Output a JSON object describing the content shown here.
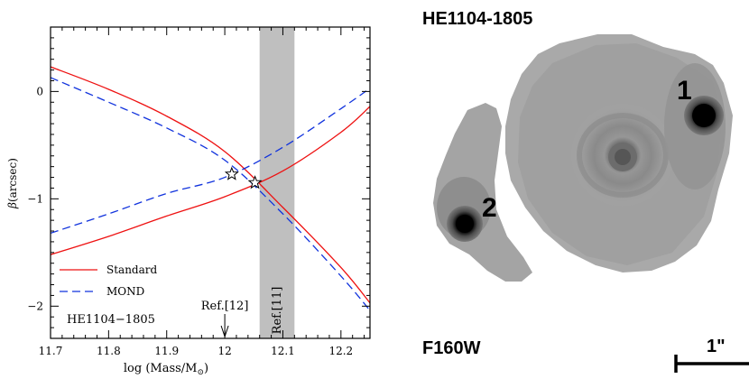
{
  "chart_data": {
    "type": "line",
    "title": "",
    "xlabel": "log (Mass/M",
    "xlabel_sub": "⊙",
    "xlabel_close": ")",
    "ylabel_greek": "β",
    "ylabel_rest": "(arcsec)",
    "xlim": [
      11.7,
      12.25
    ],
    "ylim": [
      -2.3,
      0.6
    ],
    "xticks": [
      11.7,
      11.8,
      11.9,
      12,
      12.1,
      12.2
    ],
    "xtick_labels": [
      "11.7",
      "11.8",
      "11.9",
      "12",
      "12.1",
      "12.2"
    ],
    "yticks": [
      0,
      -1,
      -2
    ],
    "ytick_labels": [
      "0",
      "−1",
      "−2"
    ],
    "grid": false,
    "legend_position": "bottom-left",
    "series": [
      {
        "name": "Standard",
        "style": "solid",
        "color": "#ee1111",
        "x": [
          11.7,
          11.8,
          11.9,
          12.0,
          12.1,
          12.2,
          12.25
        ],
        "y": [
          -1.52,
          -1.35,
          -1.16,
          -0.98,
          -0.74,
          -0.38,
          -0.14
        ]
      },
      {
        "name": "",
        "style": "solid",
        "color": "#ee1111",
        "x": [
          11.7,
          11.8,
          11.9,
          12.0,
          12.1,
          12.2,
          12.25
        ],
        "y": [
          0.23,
          0.02,
          -0.23,
          -0.56,
          -1.08,
          -1.64,
          -1.97
        ]
      },
      {
        "name": "MOND",
        "style": "dashed",
        "color": "#1133dd",
        "x": [
          11.7,
          11.8,
          11.9,
          12.0,
          12.1,
          12.2,
          12.25
        ],
        "y": [
          -1.32,
          -1.14,
          -0.95,
          -0.8,
          -0.52,
          -0.16,
          0.03
        ]
      },
      {
        "name": "",
        "style": "dashed",
        "color": "#1133dd",
        "x": [
          11.7,
          11.8,
          11.9,
          12.0,
          12.1,
          12.2,
          12.25
        ],
        "y": [
          0.13,
          -0.1,
          -0.34,
          -0.64,
          -1.14,
          -1.72,
          -2.04
        ]
      }
    ],
    "stars": [
      {
        "x": 12.012,
        "y": -0.77
      },
      {
        "x": 12.052,
        "y": -0.85
      }
    ],
    "band": {
      "x0": 12.06,
      "x1": 12.12,
      "label": "Ref.[11]",
      "color": "#bfbfbf"
    },
    "arrow": {
      "x": 12.0,
      "label": "Ref.[12]"
    },
    "annotation": "HE1104−1805",
    "legend": [
      {
        "label": "Standard",
        "style": "solid",
        "color": "#ee1111"
      },
      {
        "label": "MOND",
        "style": "dashed",
        "color": "#1133dd"
      }
    ]
  },
  "image_panel": {
    "title": "HE1104-1805",
    "filter": "F160W",
    "scale_label": "1\"",
    "image_labels": [
      "1",
      "2"
    ]
  }
}
